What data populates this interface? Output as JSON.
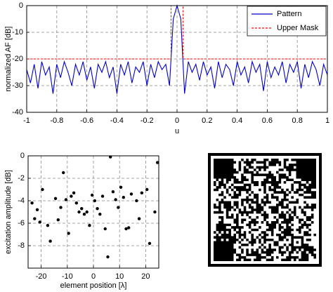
{
  "chart_data": [
    {
      "type": "line",
      "xlabel": "u",
      "ylabel": "normalized AF [dB]",
      "xlim": [
        -1,
        1
      ],
      "ylim": [
        -40,
        0
      ],
      "xticks": [
        -1,
        -0.8,
        -0.6,
        -0.4,
        -0.2,
        0,
        0.2,
        0.4,
        0.6,
        0.8,
        1
      ],
      "yticks": [
        0,
        -10,
        -20,
        -30,
        -40
      ],
      "grid": true,
      "legend": "upper right",
      "series": [
        {
          "name": "Pattern",
          "color": "#0000cc",
          "style": "solid",
          "x": [
            -1,
            -0.975,
            -0.95,
            -0.925,
            -0.9,
            -0.875,
            -0.85,
            -0.825,
            -0.8,
            -0.775,
            -0.75,
            -0.725,
            -0.7,
            -0.675,
            -0.65,
            -0.625,
            -0.6,
            -0.575,
            -0.55,
            -0.525,
            -0.5,
            -0.475,
            -0.45,
            -0.425,
            -0.4,
            -0.375,
            -0.35,
            -0.325,
            -0.3,
            -0.275,
            -0.25,
            -0.225,
            -0.2,
            -0.175,
            -0.15,
            -0.125,
            -0.1,
            -0.075,
            -0.05,
            -0.025,
            0,
            0.025,
            0.05,
            0.075,
            0.1,
            0.125,
            0.15,
            0.175,
            0.2,
            0.225,
            0.25,
            0.275,
            0.3,
            0.325,
            0.35,
            0.375,
            0.4,
            0.425,
            0.45,
            0.475,
            0.5,
            0.525,
            0.55,
            0.575,
            0.6,
            0.625,
            0.65,
            0.675,
            0.7,
            0.725,
            0.75,
            0.775,
            0.8,
            0.825,
            0.85,
            0.875,
            0.9,
            0.925,
            0.95,
            0.975,
            1
          ],
          "values": [
            -24,
            -29,
            -22,
            -31,
            -21,
            -26,
            -23,
            -33,
            -22,
            -27,
            -21,
            -25,
            -30,
            -22,
            -26,
            -21,
            -28,
            -23,
            -31,
            -22,
            -25,
            -21,
            -27,
            -23,
            -33,
            -22,
            -26,
            -21,
            -29,
            -23,
            -25,
            -21,
            -30,
            -22,
            -27,
            -21,
            -24,
            -22,
            -30,
            -5,
            0,
            -5,
            -33,
            -21,
            -25,
            -22,
            -28,
            -21,
            -26,
            -23,
            -31,
            -21,
            -27,
            -22,
            -24,
            -30,
            -21,
            -26,
            -23,
            -29,
            -21,
            -25,
            -22,
            -32,
            -21,
            -27,
            -23,
            -26,
            -21,
            -29,
            -22,
            -25,
            -21,
            -31,
            -22,
            -27,
            -21,
            -24,
            -30,
            -22,
            -26
          ]
        },
        {
          "name": "Upper Mask",
          "color": "#ff0000",
          "style": "dashed",
          "x": [
            -1,
            -0.04,
            -0.04,
            0.04,
            0.04,
            1
          ],
          "values": [
            -20,
            -20,
            0,
            0,
            -20,
            -20
          ]
        }
      ]
    },
    {
      "type": "scatter",
      "xlabel": "element position [λ]",
      "ylabel": "excitation amplitude [dB]",
      "xlim": [
        -25,
        25
      ],
      "ylim": [
        -10,
        0
      ],
      "xticks": [
        -20,
        -10,
        0,
        10,
        20
      ],
      "yticks": [
        0,
        -2,
        -4,
        -6,
        -8
      ],
      "grid": true,
      "color": "#000000",
      "x": [
        -23.5,
        -22.5,
        -21.5,
        -20.5,
        -19.5,
        -17.5,
        -16.5,
        -14.5,
        -13.5,
        -12.5,
        -11.5,
        -10.5,
        -9.5,
        -8.5,
        -7.5,
        -6.5,
        -5.5,
        -4.5,
        -3.5,
        -2.5,
        -1.5,
        -0.5,
        0.5,
        1.5,
        2.5,
        3.5,
        4.5,
        5.5,
        6.5,
        7.5,
        8.5,
        9.5,
        10.5,
        11.5,
        12.5,
        13.5,
        14.5,
        16.5,
        17.5,
        18.5,
        20.5,
        21.5,
        23.5,
        24.5
      ],
      "values": [
        -4.2,
        -5.6,
        -4.8,
        -5.9,
        -3.0,
        -6.2,
        -7.6,
        -3.8,
        -5.7,
        -4.6,
        -1.5,
        -3.9,
        -6.9,
        -3.6,
        -3.3,
        -4.2,
        -5.0,
        -4.7,
        -5.2,
        -5.0,
        -6.2,
        -3.5,
        -4.0,
        -4.7,
        -5.2,
        -3.6,
        -6.5,
        -9.0,
        -0.1,
        -3.2,
        -3.9,
        -4.6,
        -2.8,
        -3.7,
        -6.5,
        -6.4,
        -3.4,
        -4.0,
        -5.6,
        -3.3,
        -3.0,
        -7.8,
        -5.0,
        -0.6
      ]
    }
  ]
}
